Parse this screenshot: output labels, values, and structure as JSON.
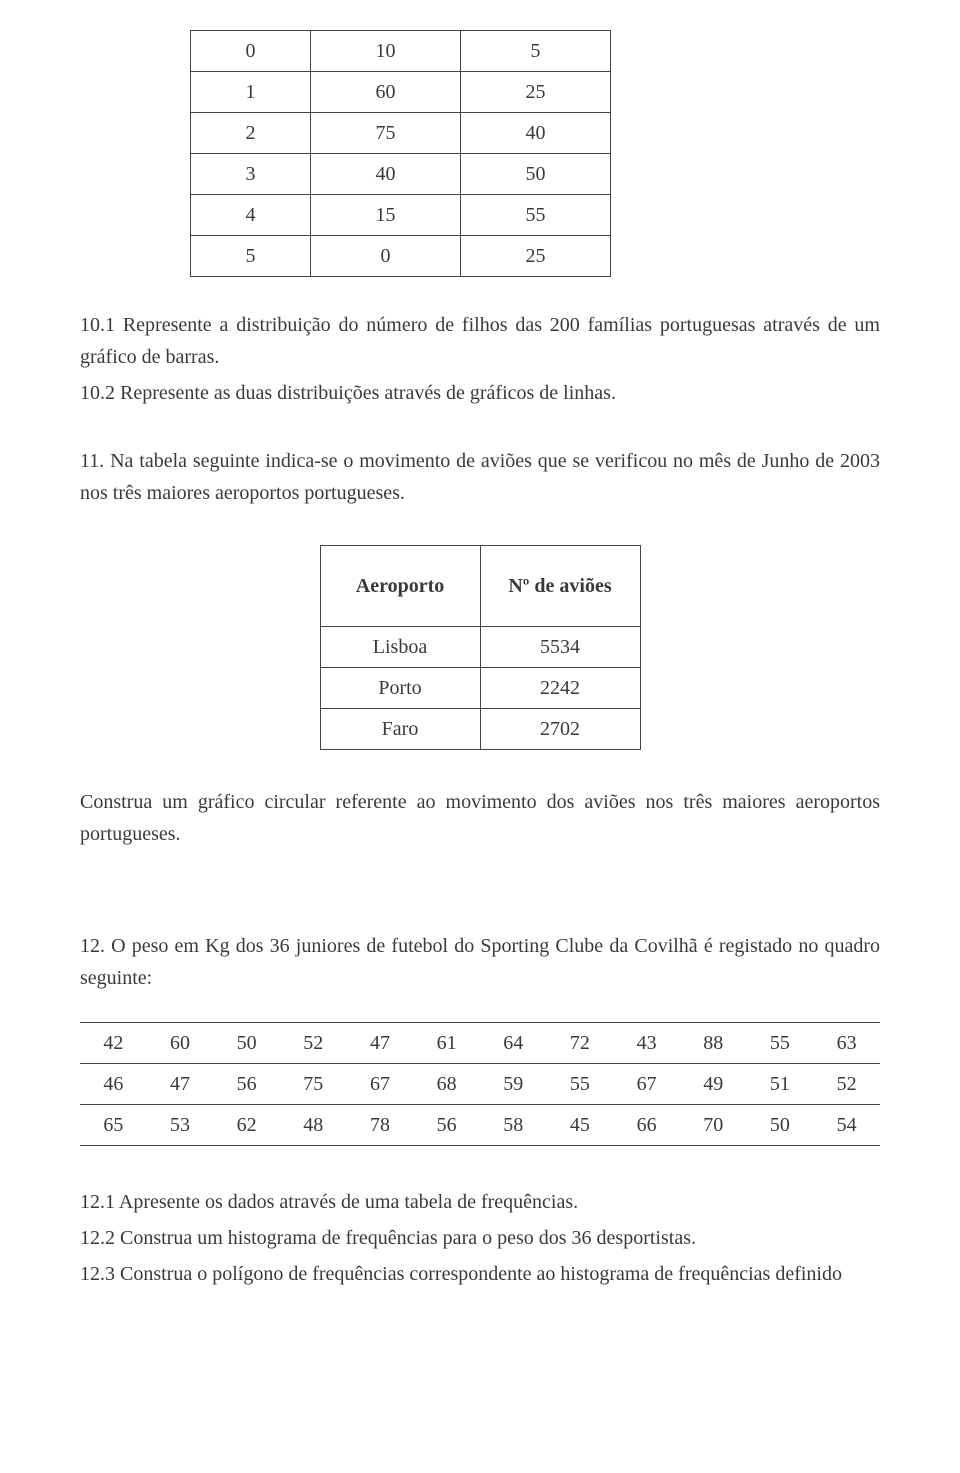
{
  "table1": {
    "rows": [
      [
        "0",
        "10",
        "5"
      ],
      [
        "1",
        "60",
        "25"
      ],
      [
        "2",
        "75",
        "40"
      ],
      [
        "3",
        "40",
        "50"
      ],
      [
        "4",
        "15",
        "55"
      ],
      [
        "5",
        "0",
        "25"
      ]
    ]
  },
  "q101": "10.1 Represente a distribuição do número de filhos das 200 famílias portuguesas através de um gráfico de barras.",
  "q102": "10.2 Represente as duas distribuições através de gráficos de linhas.",
  "q11": "11. Na tabela seguinte indica-se o movimento de aviões que se verificou no mês de Junho de 2003 nos três maiores aeroportos portugueses.",
  "table2": {
    "header": [
      "Aeroporto",
      "Nº de aviões"
    ],
    "rows": [
      [
        "Lisboa",
        "5534"
      ],
      [
        "Porto",
        "2242"
      ],
      [
        "Faro",
        "2702"
      ]
    ]
  },
  "q11b": "Construa um gráfico circular referente ao movimento dos aviões nos três maiores aeroportos portugueses.",
  "q12": "12. O peso em Kg dos 36 juniores de futebol do Sporting Clube da Covilhã é registado no quadro seguinte:",
  "table3": {
    "rows": [
      [
        "42",
        "60",
        "50",
        "52",
        "47",
        "61",
        "64",
        "72",
        "43",
        "88",
        "55",
        "63"
      ],
      [
        "46",
        "47",
        "56",
        "75",
        "67",
        "68",
        "59",
        "55",
        "67",
        "49",
        "51",
        "52"
      ],
      [
        "65",
        "53",
        "62",
        "48",
        "78",
        "56",
        "58",
        "45",
        "66",
        "70",
        "50",
        "54"
      ]
    ]
  },
  "q121": "12.1 Apresente os dados através de uma tabela de frequências.",
  "q122": "12.2 Construa um histograma de frequências para o peso dos 36 desportistas.",
  "q123": "12.3 Construa o polígono de frequências correspondente ao histograma de frequências definido"
}
